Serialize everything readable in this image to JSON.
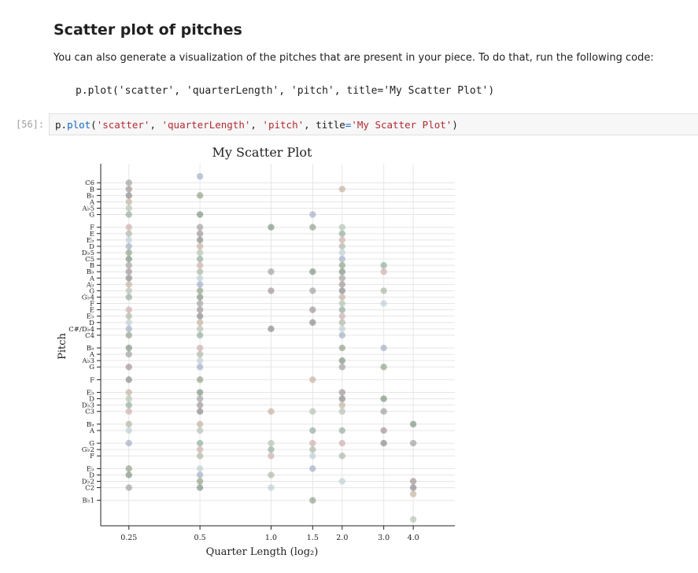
{
  "markdown": {
    "heading": "Scatter plot of pitches",
    "paragraph": "You can also generate a visualization of the pitches that are present in your piece. To do that, run the following code:",
    "example_code": "p.plot('scatter', 'quarterLength', 'pitch', title='My Scatter Plot')"
  },
  "cell": {
    "prompt": "[56]:",
    "code": {
      "obj": "p",
      "dot": ".",
      "func": "plot",
      "open": "(",
      "arg1": "'scatter'",
      "sep1": ", ",
      "arg2": "'quarterLength'",
      "sep2": ", ",
      "arg3": "'pitch'",
      "sep3": ", ",
      "kwname": "title",
      "eq": "=",
      "kwval": "'My Scatter Plot'",
      "close": ")"
    }
  },
  "chart_data": {
    "type": "scatter",
    "title": "My Scatter Plot",
    "xlabel": "Quarter Length (log₂)",
    "ylabel": "Pitch",
    "x_ticks": [
      "0.25",
      "0.5",
      "1.0",
      "1.5",
      "2.0",
      "3.0",
      "4.0"
    ],
    "x_tick_values": [
      0.25,
      0.5,
      1.0,
      1.5,
      2.0,
      3.0,
      4.0
    ],
    "x_scale": "log2",
    "xlim": [
      0.19,
      6.0
    ],
    "y_labels": [
      "B♭1",
      "C2",
      "D♭2",
      "D",
      "E♭",
      "F",
      "G♭2",
      "G",
      "A",
      "B♭",
      "C3",
      "D♭3",
      "D",
      "E♭",
      "F",
      "G",
      "A♭3",
      "A",
      "B♭",
      "C4",
      "C#/D♭4",
      "D",
      "E♭",
      "E",
      "F",
      "G♭4",
      "G",
      "A♭",
      "A",
      "B♭",
      "B",
      "C5",
      "D♭5",
      "D",
      "E♭",
      "E",
      "F",
      "G",
      "A♭5",
      "A",
      "B♭",
      "B",
      "C6"
    ],
    "y_midi": [
      34,
      36,
      37,
      38,
      39,
      41,
      42,
      43,
      45,
      46,
      48,
      49,
      50,
      51,
      53,
      55,
      56,
      57,
      58,
      60,
      61,
      62,
      63,
      64,
      65,
      66,
      67,
      68,
      69,
      70,
      71,
      72,
      73,
      74,
      75,
      76,
      77,
      79,
      80,
      81,
      82,
      83,
      84
    ],
    "ylim": [
      30,
      87
    ],
    "grid": true,
    "colors": [
      "#8a8a8a",
      "#5e7a64",
      "#7a8a6e",
      "#8e9ab8",
      "#b0c4ce",
      "#9aa890",
      "#c49a9a",
      "#7a9a88",
      "#a4b4a0",
      "#b8a08a",
      "#6e6e6e",
      "#8a7a7a"
    ],
    "points": [
      {
        "x": 0.25,
        "y": [
          36,
          38,
          39,
          43,
          45,
          46,
          48,
          49,
          50,
          51,
          53,
          55,
          57,
          58,
          60,
          61,
          62,
          63,
          64,
          66,
          67,
          68,
          69,
          70,
          71,
          72,
          73,
          74,
          75,
          76,
          77,
          79,
          80,
          81,
          82,
          83,
          84
        ]
      },
      {
        "x": 0.5,
        "y": [
          36,
          37,
          38,
          39,
          41,
          42,
          43,
          45,
          46,
          48,
          49,
          50,
          51,
          53,
          55,
          56,
          57,
          58,
          60,
          61,
          62,
          63,
          64,
          65,
          66,
          67,
          68,
          69,
          70,
          71,
          72,
          73,
          74,
          75,
          76,
          77,
          79,
          82,
          85
        ]
      },
      {
        "x": 1.0,
        "y": [
          36,
          38,
          41,
          42,
          43,
          48,
          61,
          67,
          70,
          77
        ]
      },
      {
        "x": 1.5,
        "y": [
          34,
          39,
          41,
          42,
          43,
          45,
          48,
          53,
          62,
          64,
          67,
          70,
          77,
          79
        ]
      },
      {
        "x": 2.0,
        "y": [
          37,
          41,
          43,
          45,
          48,
          49,
          50,
          51,
          55,
          56,
          58,
          60,
          61,
          62,
          63,
          64,
          65,
          66,
          67,
          68,
          69,
          70,
          71,
          72,
          73,
          74,
          75,
          76,
          77,
          83
        ]
      },
      {
        "x": 3.0,
        "y": [
          43,
          45,
          48,
          50,
          55,
          58,
          65,
          67,
          70,
          71
        ]
      },
      {
        "x": 4.0,
        "y": [
          31,
          35,
          36,
          37,
          43,
          46
        ]
      }
    ]
  }
}
